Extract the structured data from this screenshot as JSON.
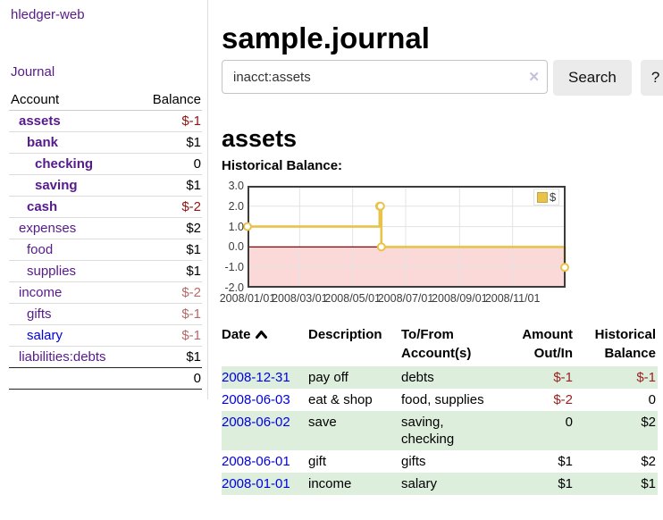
{
  "app": {
    "title": "hledger-web"
  },
  "nav": {
    "journal": "Journal"
  },
  "sidebar": {
    "accounts_table": {
      "headers": {
        "account": "Account",
        "balance": "Balance"
      },
      "rows": [
        {
          "name": "assets",
          "indent": 1,
          "bold": true,
          "balance": "$-1",
          "negative": true
        },
        {
          "name": "bank",
          "indent": 2,
          "bold": true,
          "balance": "$1",
          "negative": false
        },
        {
          "name": "checking",
          "indent": 3,
          "bold": true,
          "balance": "0",
          "negative": false
        },
        {
          "name": "saving",
          "indent": 3,
          "bold": true,
          "balance": "$1",
          "negative": false
        },
        {
          "name": "cash",
          "indent": 2,
          "bold": true,
          "balance": "$-2",
          "negative": true
        },
        {
          "name": "expenses",
          "indent": 1,
          "bold": false,
          "balance": "$2",
          "negative": false
        },
        {
          "name": "food",
          "indent": 2,
          "bold": false,
          "balance": "$1",
          "negative": false
        },
        {
          "name": "supplies",
          "indent": 2,
          "bold": false,
          "balance": "$1",
          "negative": false
        },
        {
          "name": "income",
          "indent": 1,
          "bold": false,
          "balance": "$-2",
          "negative": true
        },
        {
          "name": "gifts",
          "indent": 2,
          "bold": false,
          "balance": "$-1",
          "negative": true
        },
        {
          "name": "salary",
          "indent": 2,
          "bold": false,
          "balance": "$-1",
          "negative": true,
          "unvisited": true
        },
        {
          "name": "liabilities:debts",
          "indent": 1,
          "bold": false,
          "balance": "$1",
          "negative": false
        }
      ],
      "total": "0"
    }
  },
  "header": {
    "title": "sample.journal"
  },
  "search": {
    "value": "inacct:assets",
    "clear_icon": "✕",
    "button": "Search",
    "help_button": "?"
  },
  "account_page": {
    "heading": "assets",
    "chart_label": "Historical Balance:"
  },
  "chart_data": {
    "type": "line",
    "step": true,
    "title": "Historical Balance:",
    "series": [
      {
        "name": "$",
        "color": "#e9c24a",
        "points": [
          [
            "2008-01-01",
            1
          ],
          [
            "2008-06-01",
            2
          ],
          [
            "2008-06-02",
            2
          ],
          [
            "2008-06-03",
            0
          ],
          [
            "2008-12-31",
            -1
          ]
        ]
      }
    ],
    "xlim": [
      "2008-01-01",
      "2009-01-01"
    ],
    "ylim": [
      -2,
      3
    ],
    "yticks": [
      "3.0",
      "2.0",
      "1.0",
      "0.0",
      "-1.0",
      "-2.0"
    ],
    "xticks": [
      {
        "label": "2008/01/01",
        "date": "2008-01-01"
      },
      {
        "label": "2008/03/01",
        "date": "2008-03-01"
      },
      {
        "label": "2008/05/01",
        "date": "2008-05-01"
      },
      {
        "label": "2008/07/01",
        "date": "2008-07-01"
      },
      {
        "label": "2008/09/01",
        "date": "2008-09-01"
      },
      {
        "label": "2008/11/01",
        "date": "2008-11-01"
      }
    ],
    "grid": true,
    "legend_position": "top-right",
    "negative_region_fill": "#fbd9d9",
    "zero_line_color": "#8b0000"
  },
  "register": {
    "headers": [
      "Date",
      "Description",
      "To/From Account(s)",
      "Amount Out/In",
      "Historical Balance"
    ],
    "sort_icon": "chevron-up",
    "rows": [
      {
        "date": "2008-12-31",
        "description": "pay off",
        "accounts": "debts",
        "amount": "$-1",
        "balance": "$-1"
      },
      {
        "date": "2008-06-03",
        "description": "eat & shop",
        "accounts": "food, supplies",
        "amount": "$-2",
        "balance": "0"
      },
      {
        "date": "2008-06-02",
        "description": "save",
        "accounts": "saving, checking",
        "amount": "0",
        "balance": "$2"
      },
      {
        "date": "2008-06-01",
        "description": "gift",
        "accounts": "gifts",
        "amount": "$1",
        "balance": "$2"
      },
      {
        "date": "2008-01-01",
        "description": "income",
        "accounts": "salary",
        "amount": "$1",
        "balance": "$1"
      }
    ]
  },
  "colors": {
    "link_visited": "#551a8b",
    "link_unvisited": "#0000e0",
    "negative_strong": "#8b1717",
    "negative_soft": "#b56a6a",
    "negative_table": "#9d2020",
    "row_stripe": "#ddeedd",
    "chart_line": "#e9c24a",
    "chart_border": "#3c3c3c"
  }
}
